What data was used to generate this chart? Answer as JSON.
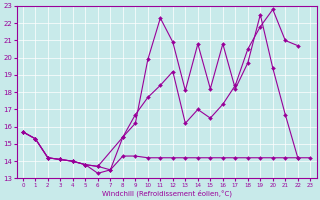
{
  "xlabel": "Windchill (Refroidissement éolien,°C)",
  "bg_color": "#c8eaea",
  "line_color": "#990099",
  "grid_color": "#ffffff",
  "xlim": [
    -0.5,
    23.5
  ],
  "ylim": [
    13,
    23
  ],
  "yticks": [
    13,
    14,
    15,
    16,
    17,
    18,
    19,
    20,
    21,
    22,
    23
  ],
  "xticks": [
    0,
    1,
    2,
    3,
    4,
    5,
    6,
    7,
    8,
    9,
    10,
    11,
    12,
    13,
    14,
    15,
    16,
    17,
    18,
    19,
    20,
    21,
    22,
    23
  ],
  "line1_x": [
    0,
    1,
    2,
    3,
    4,
    5,
    6,
    7,
    8,
    9,
    10,
    11,
    12,
    13,
    14,
    15,
    16,
    17,
    18,
    19,
    20,
    21,
    22,
    23
  ],
  "line1_y": [
    15.7,
    15.3,
    14.2,
    14.1,
    14.0,
    13.8,
    13.7,
    13.5,
    14.3,
    14.3,
    14.2,
    14.2,
    14.2,
    14.2,
    14.2,
    14.2,
    14.2,
    14.2,
    14.2,
    14.2,
    14.2,
    14.2,
    14.2,
    14.2
  ],
  "line2_x": [
    0,
    1,
    2,
    3,
    4,
    5,
    6,
    7,
    8,
    9,
    10,
    11,
    12,
    13,
    14,
    15,
    16,
    17,
    18,
    19,
    20,
    21,
    22
  ],
  "line2_y": [
    15.7,
    15.3,
    14.2,
    14.1,
    14.0,
    13.8,
    13.3,
    13.5,
    15.4,
    16.2,
    19.9,
    22.3,
    20.9,
    18.1,
    20.8,
    18.2,
    20.8,
    18.2,
    19.7,
    22.5,
    19.4,
    16.7,
    14.2
  ],
  "line3_x": [
    0,
    1,
    2,
    3,
    4,
    5,
    6,
    8,
    9,
    10,
    11,
    12,
    13,
    14,
    15,
    16,
    17,
    18,
    19,
    20,
    21,
    22
  ],
  "line3_y": [
    15.7,
    15.3,
    14.2,
    14.1,
    14.0,
    13.8,
    13.7,
    15.4,
    16.7,
    17.7,
    18.4,
    19.2,
    16.2,
    17.0,
    16.5,
    17.3,
    18.4,
    20.5,
    21.8,
    22.8,
    21.0,
    20.7
  ]
}
